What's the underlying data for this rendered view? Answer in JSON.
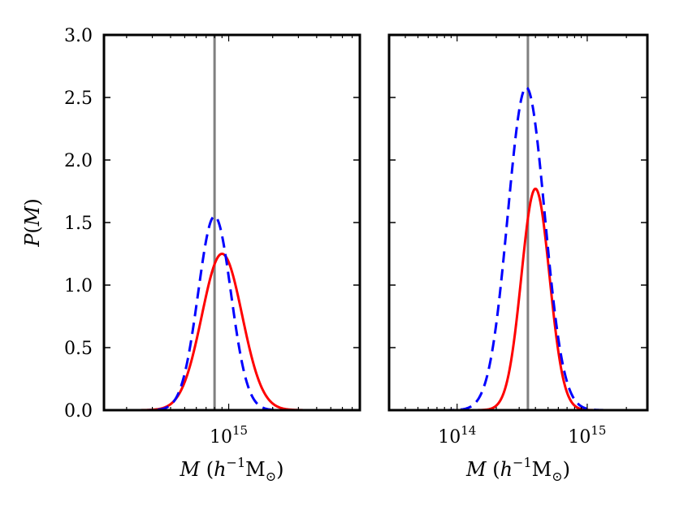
{
  "chart_data": [
    {
      "type": "line",
      "panel": "left",
      "x_scale": "log",
      "xlim": [
        140000000000000,
        7900000000000000
      ],
      "ylim": [
        0,
        3.0
      ],
      "xlabel": {
        "var": "M",
        "open": "(",
        "h": "h",
        "exp": "−1",
        "unit": "M",
        "sun": "⊙",
        "close": ")"
      },
      "ylabel": {
        "var": "P",
        "open": "(",
        "arg": "M",
        "close": ")"
      },
      "y_ticks": [
        "0.0",
        "0.5",
        "1.0",
        "1.5",
        "2.0",
        "2.5",
        "3.0"
      ],
      "x_tick_labels": [
        {
          "value": 1000000000000000.0,
          "base": "10",
          "exp": "15"
        }
      ],
      "reference_line": {
        "x": 800000000000000,
        "color": "#808080"
      },
      "series": [
        {
          "name": "red-solid",
          "color": "#ff0000",
          "style": "solid",
          "mu": 900000000000000,
          "sigma_dex": 0.138,
          "peak": 1.25
        },
        {
          "name": "blue-dashed",
          "color": "#0000ff",
          "style": "dashed",
          "mu": 800000000000000,
          "sigma_dex": 0.112,
          "peak": 1.55
        }
      ]
    },
    {
      "type": "line",
      "panel": "right",
      "x_scale": "log",
      "xlim": [
        30000000000000,
        2900000000000000
      ],
      "ylim": [
        0,
        3.0
      ],
      "xlabel": {
        "var": "M",
        "open": "(",
        "h": "h",
        "exp": "−1",
        "unit": "M",
        "sun": "⊙",
        "close": ")"
      },
      "x_tick_labels": [
        {
          "value": 100000000000000.0,
          "base": "10",
          "exp": "14"
        },
        {
          "value": 1000000000000000.0,
          "base": "10",
          "exp": "15"
        }
      ],
      "reference_line": {
        "x": 350000000000000,
        "color": "#808080"
      },
      "series": [
        {
          "name": "red-solid",
          "color": "#ff0000",
          "style": "solid",
          "mu": 400000000000000,
          "sigma_dex": 0.108,
          "peak": 1.77
        },
        {
          "name": "blue-dashed",
          "color": "#0000ff",
          "style": "dashed",
          "mu": 340000000000000,
          "sigma_dex": 0.142,
          "peak": 2.58
        }
      ]
    }
  ]
}
